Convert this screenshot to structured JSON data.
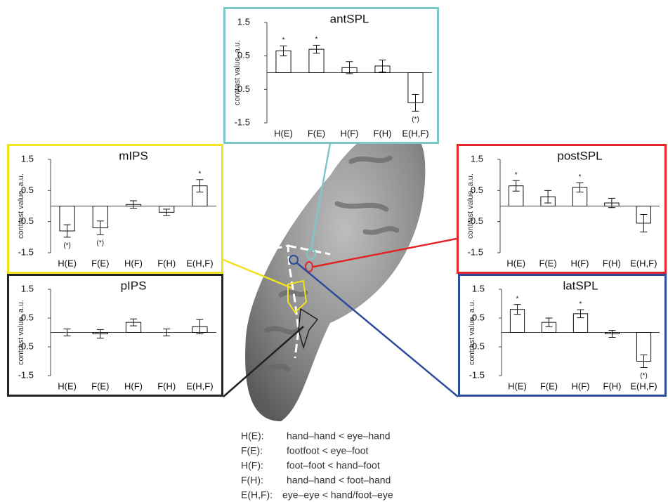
{
  "chart_data": [
    {
      "type": "bar",
      "title": "antSPL",
      "ylabel": "contrast value, a.u.",
      "color": "#7fc6c6",
      "categories": [
        "H(E)",
        "F(E)",
        "H(F)",
        "F(H)",
        "E(H,F)"
      ],
      "values": [
        0.65,
        0.7,
        0.15,
        0.2,
        -0.9
      ],
      "errors": [
        0.15,
        0.12,
        0.18,
        0.18,
        0.25
      ],
      "annotations": [
        "*",
        "*",
        null,
        null,
        "(*)"
      ],
      "ylim": [
        -1.5,
        1.5
      ],
      "yticks": [
        -1.5,
        -0.5,
        0.5,
        1.5
      ]
    },
    {
      "type": "bar",
      "title": "mIPS",
      "ylabel": "contrast value, a.u.",
      "color": "#f2e21e",
      "categories": [
        "H(E)",
        "F(E)",
        "H(F)",
        "F(H)",
        "E(H,F)"
      ],
      "values": [
        -0.8,
        -0.7,
        0.05,
        -0.2,
        0.65
      ],
      "errors": [
        0.2,
        0.22,
        0.12,
        0.1,
        0.2
      ],
      "annotations": [
        "(*)",
        "(*)",
        null,
        null,
        "*"
      ],
      "ylim": [
        -1.5,
        1.5
      ],
      "yticks": [
        -1.5,
        -0.5,
        0.5,
        1.5
      ]
    },
    {
      "type": "bar",
      "title": "postSPL",
      "ylabel": "contrast value, a.u.",
      "color": "#e02428",
      "categories": [
        "H(E)",
        "F(E)",
        "H(F)",
        "F(H)",
        "E(H,F)"
      ],
      "values": [
        0.65,
        0.3,
        0.6,
        0.1,
        -0.55
      ],
      "errors": [
        0.17,
        0.2,
        0.15,
        0.15,
        0.28
      ],
      "annotations": [
        "*",
        null,
        "*",
        null,
        null
      ],
      "ylim": [
        -1.5,
        1.5
      ],
      "yticks": [
        -1.5,
        -0.5,
        0.5,
        1.5
      ]
    },
    {
      "type": "bar",
      "title": "pIPS",
      "ylabel": "contrast value, a.u.",
      "color": "#222222",
      "categories": [
        "H(E)",
        "F(E)",
        "H(F)",
        "F(H)",
        "E(H,F)"
      ],
      "values": [
        0.0,
        -0.05,
        0.35,
        0.0,
        0.2
      ],
      "errors": [
        0.12,
        0.15,
        0.12,
        0.12,
        0.25
      ],
      "annotations": [
        null,
        null,
        null,
        null,
        null
      ],
      "ylim": [
        -1.5,
        1.5
      ],
      "yticks": [
        -1.5,
        -0.5,
        0.5,
        1.5
      ]
    },
    {
      "type": "bar",
      "title": "latSPL",
      "ylabel": "contrast value, a.u.",
      "color": "#2b4c9c",
      "categories": [
        "H(E)",
        "F(E)",
        "H(F)",
        "F(H)",
        "E(H,F)"
      ],
      "values": [
        0.8,
        0.35,
        0.65,
        -0.05,
        -1.0
      ],
      "errors": [
        0.17,
        0.15,
        0.14,
        0.12,
        0.22
      ],
      "annotations": [
        "*",
        null,
        "*",
        null,
        "(*)"
      ],
      "ylim": [
        -1.5,
        1.5
      ],
      "yticks": [
        -1.5,
        -0.5,
        0.5,
        1.5
      ]
    }
  ],
  "legend_notes": [
    {
      "key": "H(E):",
      "text": "hand–hand < eye–hand"
    },
    {
      "key": "F(E):",
      "text": "footfoot < eye–foot"
    },
    {
      "key": "H(F):",
      "text": "foot–foot < hand–foot"
    },
    {
      "key": "F(H):",
      "text": "hand–hand < foot–hand"
    },
    {
      "key": "E(H,F):",
      "text": "eye–eye < hand/foot–eye"
    }
  ]
}
